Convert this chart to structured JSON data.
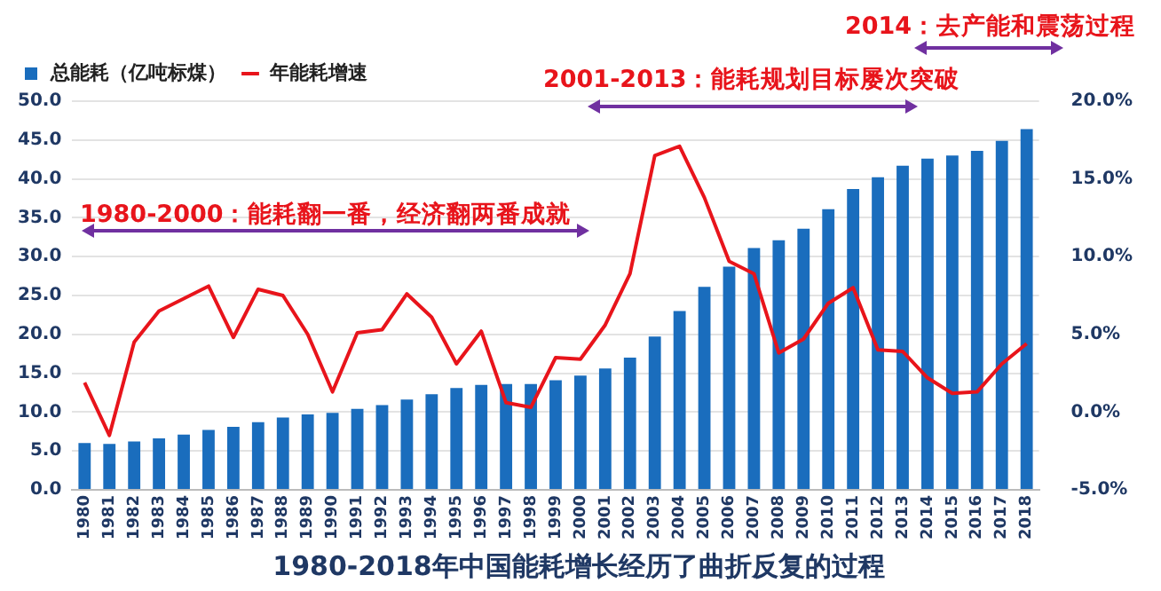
{
  "chart_data": {
    "type": "bar",
    "title": "1980-2018年中国能耗增长经历了曲折反复的过程",
    "categories": [
      "1980",
      "1981",
      "1982",
      "1983",
      "1984",
      "1985",
      "1986",
      "1987",
      "1988",
      "1989",
      "1990",
      "1991",
      "1992",
      "1993",
      "1994",
      "1995",
      "1996",
      "1997",
      "1998",
      "1999",
      "2000",
      "2001",
      "2002",
      "2003",
      "2004",
      "2005",
      "2006",
      "2007",
      "2008",
      "2009",
      "2010",
      "2011",
      "2012",
      "2013",
      "2014",
      "2015",
      "2016",
      "2017",
      "2018"
    ],
    "series": [
      {
        "name": "总能耗（亿吨标煤）",
        "color": "#1a6dbd",
        "values": [
          6.0,
          5.9,
          6.2,
          6.6,
          7.1,
          7.7,
          8.1,
          8.7,
          9.3,
          9.7,
          9.9,
          10.4,
          10.9,
          11.6,
          12.3,
          13.1,
          13.5,
          13.6,
          13.6,
          14.1,
          14.7,
          15.6,
          17.0,
          19.7,
          23.0,
          26.1,
          28.7,
          31.1,
          32.1,
          33.6,
          36.1,
          38.7,
          40.2,
          41.7,
          42.6,
          43.0,
          43.6,
          44.9,
          46.4
        ]
      },
      {
        "name": "年能耗增速",
        "type": "line",
        "axis": "y2",
        "color": "#e8141b",
        "values": [
          1.9,
          -1.5,
          4.5,
          6.5,
          7.3,
          8.1,
          4.8,
          7.9,
          7.5,
          5.0,
          1.3,
          5.1,
          5.3,
          7.6,
          6.1,
          3.1,
          5.2,
          0.6,
          0.3,
          3.5,
          3.4,
          5.6,
          8.9,
          16.5,
          17.1,
          13.8,
          9.7,
          8.9,
          3.8,
          4.7,
          7.0,
          8.0,
          4.0,
          3.9,
          2.2,
          1.2,
          1.3,
          3.1,
          4.4
        ]
      }
    ],
    "ylim": [
      0,
      50
    ],
    "yticks": [
      {
        "value": 0,
        "label": "0.0"
      },
      {
        "value": 5,
        "label": "5.0"
      },
      {
        "value": 10,
        "label": "10.0"
      },
      {
        "value": 15,
        "label": "15.0"
      },
      {
        "value": 20,
        "label": "20.0"
      },
      {
        "value": 25,
        "label": "25.0"
      },
      {
        "value": 30,
        "label": "30.0"
      },
      {
        "value": 35,
        "label": "35.0"
      },
      {
        "value": 40,
        "label": "40.0"
      },
      {
        "value": 45,
        "label": "45.0"
      },
      {
        "value": 50,
        "label": "50.0"
      }
    ],
    "y2lim": [
      -5,
      20
    ],
    "y2ticks": [
      {
        "value": -5,
        "label": "-5.0%"
      },
      {
        "value": 0,
        "label": "0.0%"
      },
      {
        "value": 5,
        "label": "5.0%"
      },
      {
        "value": 10,
        "label": "10.0%"
      },
      {
        "value": 15,
        "label": "15.0%"
      },
      {
        "value": 20,
        "label": "20.0%"
      }
    ],
    "annotations": [
      "1980-2000：能耗翻一番，经济翻两番成就",
      "2001-2013：能耗规划目标屡次突破",
      "2014：去产能和震荡过程"
    ],
    "grid": "y",
    "legend": "top left",
    "marker": "none",
    "line_style": "solid"
  }
}
